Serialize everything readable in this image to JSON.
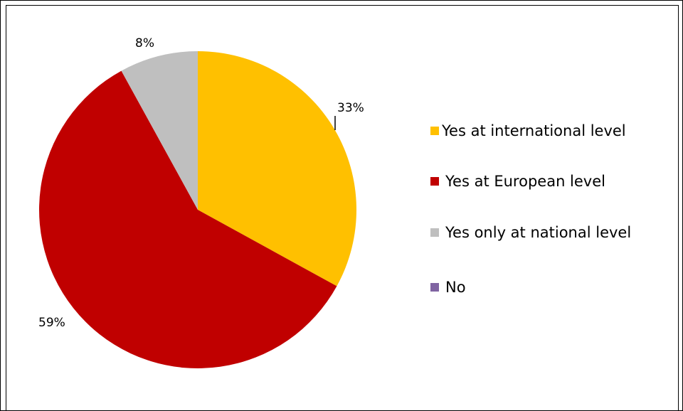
{
  "chart_data": {
    "type": "pie",
    "title": "",
    "categories": [
      "Yes at international level",
      "Yes at European level",
      "Yes only at national level",
      "No"
    ],
    "values": [
      33,
      59,
      8,
      0
    ],
    "labels": [
      "33%",
      "59%",
      "8%",
      ""
    ],
    "colors": [
      "#FFC000",
      "#C00000",
      "#BFBFBF",
      "#8064A2"
    ],
    "legend_position": "right"
  }
}
